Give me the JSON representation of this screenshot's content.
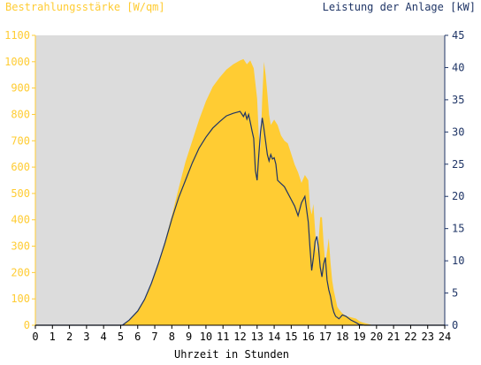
{
  "chart_data": {
    "type": "area",
    "title_left": "Bestrahlungsstärke [W/qm]",
    "title_right": "Leistung der Anlage [kW]",
    "xlabel": "Uhrzeit in Stunden",
    "xlim": [
      0,
      24
    ],
    "x_ticks": [
      "0",
      "1",
      "2",
      "3",
      "4",
      "5",
      "6",
      "7",
      "8",
      "9",
      "10",
      "11",
      "12",
      "13",
      "14",
      "15",
      "16",
      "17",
      "18",
      "19",
      "20",
      "21",
      "22",
      "23",
      "24"
    ],
    "y_left": {
      "min": 0,
      "max": 1100,
      "ticks": [
        "0",
        "100",
        "200",
        "300",
        "400",
        "500",
        "600",
        "700",
        "800",
        "900",
        "1000",
        "1100"
      ]
    },
    "y_right": {
      "min": 0,
      "max": 45,
      "ticks": [
        "0",
        "5",
        "10",
        "15",
        "20",
        "25",
        "30",
        "35",
        "40",
        "45"
      ]
    },
    "grid": false,
    "background_color": "#dcdcdc",
    "series": [
      {
        "name": "Bestrahlungsstärke [W/qm]",
        "axis": "left",
        "color": "#ffcc33",
        "style": "area",
        "x": [
          0,
          5.1,
          5.3,
          5.6,
          6.0,
          6.4,
          6.8,
          7.2,
          7.6,
          8.0,
          8.4,
          8.8,
          9.2,
          9.6,
          10.0,
          10.4,
          10.8,
          11.2,
          11.6,
          12.0,
          12.2,
          12.4,
          12.6,
          12.8,
          13.0,
          13.1,
          13.2,
          13.3,
          13.4,
          13.5,
          13.6,
          13.7,
          13.8,
          14.0,
          14.2,
          14.4,
          14.6,
          14.8,
          15.0,
          15.2,
          15.4,
          15.6,
          15.8,
          16.0,
          16.1,
          16.2,
          16.3,
          16.4,
          16.5,
          16.6,
          16.7,
          16.8,
          16.9,
          17.0,
          17.1,
          17.2,
          17.3,
          17.4,
          17.5,
          17.6,
          17.7,
          17.8,
          18.0,
          18.2,
          18.5,
          18.8,
          19.0,
          19.2,
          19.5,
          19.8,
          20.0,
          24
        ],
        "values": [
          0,
          0,
          10,
          25,
          55,
          95,
          155,
          235,
          320,
          415,
          520,
          620,
          700,
          780,
          850,
          905,
          940,
          970,
          990,
          1005,
          1010,
          990,
          1005,
          975,
          860,
          720,
          670,
          860,
          1000,
          950,
          880,
          800,
          760,
          780,
          760,
          720,
          700,
          690,
          650,
          610,
          580,
          540,
          570,
          550,
          450,
          420,
          460,
          360,
          270,
          320,
          410,
          410,
          310,
          230,
          280,
          330,
          240,
          170,
          130,
          100,
          70,
          60,
          45,
          35,
          30,
          25,
          15,
          10,
          5,
          0,
          0,
          0
        ]
      },
      {
        "name": "Leistung der Anlage [kW]",
        "axis": "right",
        "color": "#1f3566",
        "style": "line",
        "x": [
          0,
          5.1,
          5.5,
          6.0,
          6.4,
          6.8,
          7.2,
          7.6,
          8.0,
          8.4,
          8.8,
          9.2,
          9.6,
          10.0,
          10.4,
          10.8,
          11.2,
          11.6,
          12.0,
          12.2,
          12.3,
          12.4,
          12.5,
          12.6,
          12.7,
          12.8,
          12.9,
          13.0,
          13.1,
          13.2,
          13.3,
          13.4,
          13.5,
          13.6,
          13.7,
          13.8,
          13.9,
          14.0,
          14.1,
          14.2,
          14.4,
          14.6,
          14.8,
          15.0,
          15.2,
          15.4,
          15.6,
          15.8,
          16.0,
          16.1,
          16.2,
          16.3,
          16.4,
          16.5,
          16.6,
          16.7,
          16.8,
          16.9,
          17.0,
          17.1,
          17.2,
          17.3,
          17.4,
          17.5,
          17.6,
          17.8,
          18.0,
          18.2,
          18.5,
          18.8,
          19.0,
          19.3,
          19.6,
          20.0,
          24
        ],
        "values": [
          0,
          0,
          0.8,
          2.2,
          4.0,
          6.5,
          9.5,
          12.8,
          16.5,
          19.8,
          22.5,
          25.2,
          27.5,
          29.2,
          30.6,
          31.6,
          32.5,
          32.9,
          33.2,
          32.4,
          33.0,
          32.0,
          32.7,
          31.5,
          30.2,
          29.0,
          24.0,
          22.5,
          26.5,
          30.0,
          32.2,
          30.5,
          28.5,
          26.5,
          25.5,
          26.5,
          25.8,
          26.0,
          25.0,
          22.5,
          22.0,
          21.5,
          20.5,
          19.5,
          18.5,
          17.0,
          19.0,
          20.0,
          16.0,
          12.0,
          8.5,
          10.5,
          13.0,
          13.8,
          12.0,
          9.0,
          7.5,
          9.5,
          10.5,
          7.0,
          5.5,
          4.5,
          3.0,
          2.0,
          1.4,
          1.0,
          1.6,
          1.4,
          0.8,
          0.4,
          0.1,
          0,
          0,
          0,
          0
        ]
      }
    ]
  }
}
